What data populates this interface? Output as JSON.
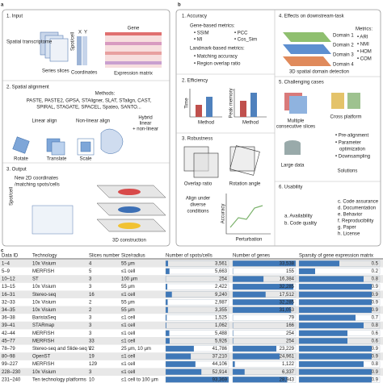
{
  "panel_a": {
    "label": "a",
    "input": {
      "title": "1. Input",
      "spatial": "Spatial transcriptome",
      "slices": "Series slices",
      "spot": "Spot/cell",
      "x": "X",
      "y": "Y",
      "coords": "Coordinates",
      "gene": "Gene",
      "matrix": "Expression matrix"
    },
    "alignment": {
      "title": "2. Spatial alignment",
      "methods_title": "Methods:",
      "methods_1": "PASTE, PASTE2, GPSA, STAligner, SLAT, STalign, CAST,",
      "methods_2": "SPIRAL, STAGATE, SPACEL, Spateo, SANTO...",
      "linear": "Linear align",
      "nonlinear": "Non-linear align",
      "hybrid_1": "Hybrid",
      "hybrid_2": "linear",
      "hybrid_3": "+ non-linear",
      "rotate": "Rotate",
      "translate": "Translate",
      "scale": "Scale"
    },
    "output": {
      "title": "3. Output",
      "new_1": "New 2D coordinates",
      "new_2": "/matching spots/cells",
      "spot": "Spot/cell",
      "construction": "3D construction"
    }
  },
  "panel_b": {
    "label": "b",
    "accuracy": {
      "title": "1. Accuracy",
      "gene_metrics": "Gene-based metrics:",
      "ssim": "• SSIM",
      "pcc": "• PCC",
      "mi": "• MI",
      "cos": "• Cos_Sim",
      "landmark": "Landmark-based metrics:",
      "matching": "• Matching accuracy",
      "overlap": "• Region overlap ratio"
    },
    "efficiency": {
      "title": "2. Efficiency",
      "time": "Time",
      "method_1": "Method",
      "memory": "Peak memory",
      "method_2": "Method"
    },
    "robustness": {
      "title": "3. Robustness",
      "overlap": "Overlap ratio",
      "rotation": "Rotation angle",
      "diverse_1": "Align under",
      "diverse_2": "diverse",
      "diverse_3": "conditions",
      "accuracy": "Accuracy",
      "perturbation": "Perturbation"
    },
    "downstream": {
      "title": "4. Effects on downstream-task",
      "metrics": "Metrics:",
      "ari": "• ARI",
      "nmi": "• NMI",
      "hom": "• HOM",
      "com": "• COM",
      "domain_1": "Domain 1",
      "domain_2": "Domain 2",
      "domain_3": "Domain 3",
      "domain_4": "Domain 4",
      "detection": "3D spatial domain detection"
    },
    "challenging": {
      "title": "5. Challenging cases",
      "multiple_1": "Multiple",
      "multiple_2": "consecutive slices",
      "cross": "Cross platform",
      "large": "Large data",
      "pre": "• Pre-alignment",
      "param_1": "• Parameter",
      "param_2": "optimization",
      "down": "• Downsampling",
      "solutions": "Solutions"
    },
    "usability": {
      "title": "6. Usability",
      "a": "a. Availability",
      "b": "b. Code quality",
      "c": "c. Code assurance",
      "d": "d. Documentation",
      "e": "e. Behavior",
      "f": "f. Reproducibility",
      "g": "g. Paper",
      "h": "h. License"
    }
  },
  "table": {
    "label": "c",
    "header": [
      "Data ID",
      "Technology",
      "Slices number",
      "Size/radius",
      "Number of spots/cells",
      "Number of genes",
      "Sparsity of gene expression matrix"
    ],
    "rows": [
      [
        "1–4",
        "10x Visium",
        "4",
        "55 μm",
        {
          "value": 3561,
          "label": "3,561"
        },
        {
          "value": 33538,
          "label": "33,538"
        },
        0.5
      ],
      [
        "5–9",
        "MERFISH",
        "5",
        "≤1 cell",
        {
          "value": 5663,
          "label": "5,663"
        },
        {
          "value": 155,
          "label": "155"
        },
        0.2
      ],
      [
        "10–12",
        "ST",
        "3",
        "100 μm",
        {
          "value": 254,
          "label": "254"
        },
        {
          "value": 16384,
          "label": "16,384"
        },
        0.8
      ],
      [
        "13–15",
        "10x Visium",
        "3",
        "55 μm",
        {
          "value": 2422,
          "label": "2,422"
        },
        {
          "value": 32285,
          "label": "32,285"
        },
        0.9
      ],
      [
        "16–31",
        "Stereo-seq",
        "16",
        "≤1 cell",
        {
          "value": 9240,
          "label": "9,240"
        },
        {
          "value": 17512,
          "label": "17,512"
        },
        0.9
      ],
      [
        "32–33",
        "10x Visium",
        "2",
        "55 μm",
        {
          "value": 2987,
          "label": "2,987"
        },
        {
          "value": 32285,
          "label": "32,285"
        },
        0.9
      ],
      [
        "34–35",
        "10x Visium",
        "2",
        "55 μm",
        {
          "value": 3355,
          "label": "3,355"
        },
        {
          "value": 31053,
          "label": "31,053"
        },
        0.9
      ],
      [
        "36–38",
        "BaristaSeq",
        "3",
        "≤1 cell",
        {
          "value": 1525,
          "label": "1,525"
        },
        {
          "value": 79,
          "label": "79"
        },
        0.7
      ],
      [
        "39–41",
        "STARmap",
        "3",
        "≤1 cell",
        {
          "value": 1062,
          "label": "1,062"
        },
        {
          "value": 166,
          "label": "166"
        },
        0.8
      ],
      [
        "42–44",
        "MERFISH",
        "3",
        "≤1 cell",
        {
          "value": 5488,
          "label": "5,488"
        },
        {
          "value": 254,
          "label": "254"
        },
        0.6
      ],
      [
        "45–77",
        "MERFISH",
        "33",
        "≤1 cell",
        {
          "value": 5926,
          "label": "5,926"
        },
        {
          "value": 254,
          "label": "254"
        },
        0.6
      ],
      [
        "78–79",
        "Stereo-seq and Slide-seq V2",
        "2",
        "25 μm, 10 μm",
        {
          "value": 41786,
          "label": "41,786"
        },
        {
          "value": 23229,
          "label": "23,229"
        },
        0.9
      ],
      [
        "80–98",
        "OpenST",
        "19",
        "≤1 cell",
        {
          "value": 37210,
          "label": "37,210"
        },
        {
          "value": 24961,
          "label": "24,961"
        },
        0.9
      ],
      [
        "99–227",
        "MERFISH",
        "129",
        "≤1 cell",
        {
          "value": 44106,
          "label": "44,106"
        },
        {
          "value": 1122,
          "label": "1,122"
        },
        0.8
      ],
      [
        "228–230",
        "10x Visium",
        "3",
        "≤1 cell",
        {
          "value": 52914,
          "label": "52,914"
        },
        {
          "value": 6337,
          "label": "6,337"
        },
        0.9
      ],
      [
        "231–240",
        "Ten technology platforms",
        "10",
        "≤1 cell to 100 μm",
        {
          "value": 93369,
          "label": "93,369"
        },
        {
          "value": 28943,
          "label": "28,943"
        },
        0.9
      ]
    ]
  }
}
